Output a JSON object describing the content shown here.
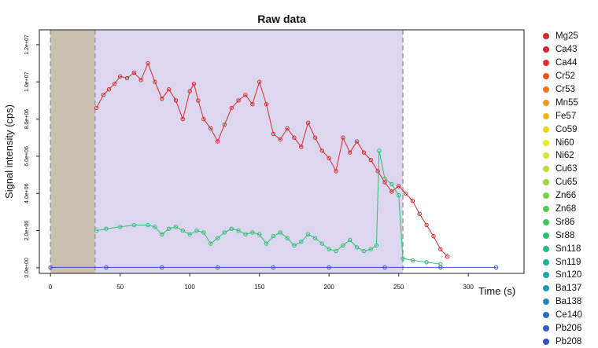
{
  "chart_data": {
    "type": "scatter",
    "title": "Raw data",
    "xlabel": "Time (s)",
    "ylabel": "Signal intensity (cps)",
    "xlim": [
      -8,
      340
    ],
    "ylim": [
      -300000,
      12800000
    ],
    "x_ticks": [
      {
        "value": 0,
        "label": "0"
      },
      {
        "value": 50,
        "label": "50"
      },
      {
        "value": 100,
        "label": "100"
      },
      {
        "value": 150,
        "label": "150"
      },
      {
        "value": 200,
        "label": "200"
      },
      {
        "value": 250,
        "label": "250"
      },
      {
        "value": 300,
        "label": "300"
      }
    ],
    "y_ticks": [
      {
        "value": 0,
        "label": "0.0e+00"
      },
      {
        "value": 2000000,
        "label": "2.0e+06"
      },
      {
        "value": 4000000,
        "label": "4.0e+06"
      },
      {
        "value": 6000000,
        "label": "6.0e+06"
      },
      {
        "value": 8000000,
        "label": "8.0e+06"
      },
      {
        "value": 10000000,
        "label": "1.0e+07"
      },
      {
        "value": 12000000,
        "label": "1.2e+07"
      }
    ],
    "regions": [
      {
        "name": "background",
        "x": [
          0,
          32
        ],
        "color": "#c9bfae"
      },
      {
        "name": "signal",
        "x": [
          32,
          253
        ],
        "color": "#dcd6f0"
      }
    ],
    "grid": false,
    "legend_position": "right",
    "series": [
      {
        "name": "Mg25",
        "color": "#d62b2b",
        "points": [
          [
            33,
            8600000.0
          ],
          [
            38,
            9300000.0
          ],
          [
            42,
            9600000.0
          ],
          [
            46,
            9900000.0
          ],
          [
            50,
            10300000.0
          ],
          [
            55,
            10200000.0
          ],
          [
            60,
            10500000.0
          ],
          [
            65,
            10100000.0
          ],
          [
            70,
            11000000.0
          ],
          [
            75,
            10000000.0
          ],
          [
            80,
            9100000.0
          ],
          [
            85,
            9600000.0
          ],
          [
            90,
            9000000.0
          ],
          [
            95,
            8000000.0
          ],
          [
            100,
            9500000.0
          ],
          [
            103,
            9900000.0
          ],
          [
            106,
            9000000.0
          ],
          [
            110,
            8000000.0
          ],
          [
            115,
            7500000.0
          ],
          [
            120,
            6800000.0
          ],
          [
            125,
            7700000.0
          ],
          [
            130,
            8600000.0
          ],
          [
            135,
            9000000.0
          ],
          [
            140,
            9300000.0
          ],
          [
            145,
            8800000.0
          ],
          [
            150,
            10000000.0
          ],
          [
            155,
            8800000.0
          ],
          [
            160,
            7200000.0
          ],
          [
            165,
            6900000.0
          ],
          [
            170,
            7500000.0
          ],
          [
            175,
            7000000.0
          ],
          [
            180,
            6500000.0
          ],
          [
            185,
            7800000.0
          ],
          [
            190,
            7000000.0
          ],
          [
            195,
            6300000.0
          ],
          [
            200,
            5900000.0
          ],
          [
            205,
            5200000.0
          ],
          [
            210,
            7000000.0
          ],
          [
            215,
            6200000.0
          ],
          [
            220,
            6800000.0
          ],
          [
            225,
            6200000.0
          ],
          [
            230,
            5800000.0
          ],
          [
            235,
            5200000.0
          ],
          [
            240,
            4600000.0
          ],
          [
            245,
            4100000.0
          ],
          [
            250,
            4400000.0
          ],
          [
            255,
            4000000.0
          ],
          [
            260,
            3600000.0
          ],
          [
            265,
            2900000.0
          ],
          [
            270,
            2300000.0
          ],
          [
            275,
            1700000.0
          ],
          [
            280,
            1000000.0
          ],
          [
            285,
            600000.0
          ]
        ]
      },
      {
        "name": "Ca43",
        "color": "#d9262e",
        "points": []
      },
      {
        "name": "Ca44",
        "color": "#e0352a",
        "points": []
      },
      {
        "name": "Cr52",
        "color": "#e8561f",
        "points": []
      },
      {
        "name": "Cr53",
        "color": "#ec7a1f",
        "points": []
      },
      {
        "name": "Mn55",
        "color": "#f09a1f",
        "points": []
      },
      {
        "name": "Fe57",
        "color": "#f2b51c",
        "points": []
      },
      {
        "name": "Co59",
        "color": "#f1d21c",
        "points": []
      },
      {
        "name": "Ni60",
        "color": "#eaea22",
        "points": []
      },
      {
        "name": "Ni62",
        "color": "#d3e631",
        "points": []
      },
      {
        "name": "Cu63",
        "color": "#b6df3a",
        "points": []
      },
      {
        "name": "Cu65",
        "color": "#97d83f",
        "points": []
      },
      {
        "name": "Zn66",
        "color": "#78d146",
        "points": []
      },
      {
        "name": "Zn68",
        "color": "#56cb51",
        "points": []
      },
      {
        "name": "Sr86",
        "color": "#3ec55d",
        "points": []
      },
      {
        "name": "Sr88",
        "color": "#2ec06e",
        "points": [
          [
            33,
            2000000.0
          ],
          [
            40,
            2100000.0
          ],
          [
            50,
            2200000.0
          ],
          [
            60,
            2300000.0
          ],
          [
            70,
            2300000.0
          ],
          [
            75,
            2200000.0
          ],
          [
            80,
            1800000.0
          ],
          [
            85,
            2100000.0
          ],
          [
            90,
            2200000.0
          ],
          [
            95,
            2000000.0
          ],
          [
            100,
            1800000.0
          ],
          [
            105,
            2000000.0
          ],
          [
            110,
            1900000.0
          ],
          [
            115,
            1300000.0
          ],
          [
            120,
            1600000.0
          ],
          [
            125,
            1900000.0
          ],
          [
            130,
            2100000.0
          ],
          [
            135,
            2000000.0
          ],
          [
            140,
            1800000.0
          ],
          [
            145,
            1900000.0
          ],
          [
            150,
            1800000.0
          ],
          [
            155,
            1300000.0
          ],
          [
            160,
            1700000.0
          ],
          [
            165,
            1900000.0
          ],
          [
            170,
            1600000.0
          ],
          [
            175,
            1200000.0
          ],
          [
            180,
            1400000.0
          ],
          [
            185,
            1800000.0
          ],
          [
            190,
            1600000.0
          ],
          [
            195,
            1300000.0
          ],
          [
            200,
            1000000.0
          ],
          [
            205,
            900000.0
          ],
          [
            210,
            1200000.0
          ],
          [
            215,
            1500000.0
          ],
          [
            220,
            1100000.0
          ],
          [
            225,
            900000.0
          ],
          [
            230,
            1000000.0
          ],
          [
            234,
            1200000.0
          ],
          [
            236,
            6300000.0
          ],
          [
            240,
            4800000.0
          ],
          [
            245,
            4500000.0
          ],
          [
            250,
            3900000.0
          ],
          [
            253,
            500000.0
          ],
          [
            260,
            400000.0
          ],
          [
            270,
            300000.0
          ],
          [
            280,
            200000.0
          ]
        ]
      },
      {
        "name": "Sn118",
        "color": "#22bb84",
        "points": []
      },
      {
        "name": "Sn119",
        "color": "#1db39a",
        "points": []
      },
      {
        "name": "Sn120",
        "color": "#1aa8ad",
        "points": []
      },
      {
        "name": "Ba137",
        "color": "#1a98b8",
        "points": []
      },
      {
        "name": "Ba138",
        "color": "#2485bb",
        "points": []
      },
      {
        "name": "Ce140",
        "color": "#2d70bd",
        "points": []
      },
      {
        "name": "Pb206",
        "color": "#335ebf",
        "points": []
      },
      {
        "name": "Pb208",
        "color": "#3a4fc2",
        "points": [
          [
            0,
            20000.0
          ],
          [
            40,
            20000.0
          ],
          [
            80,
            20000.0
          ],
          [
            120,
            20000.0
          ],
          [
            160,
            20000.0
          ],
          [
            200,
            20000.0
          ],
          [
            240,
            20000.0
          ],
          [
            280,
            20000.0
          ],
          [
            320,
            20000.0
          ]
        ]
      }
    ]
  }
}
